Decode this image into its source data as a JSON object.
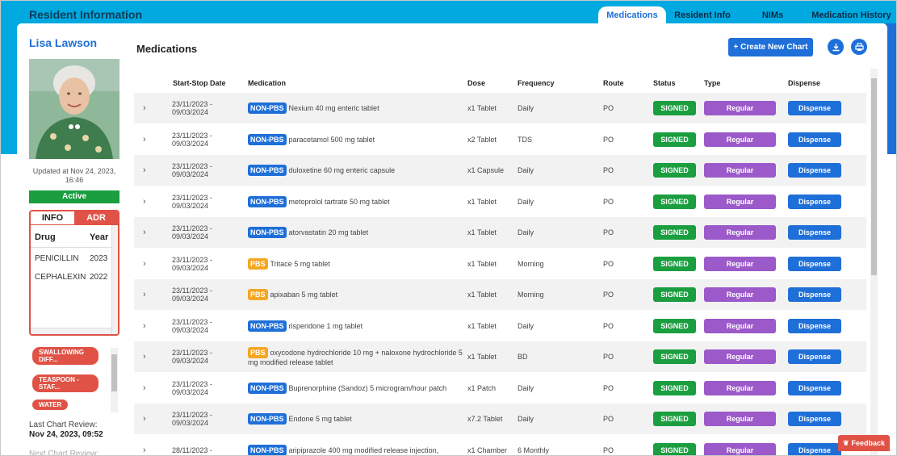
{
  "app": {
    "title": "Resident Information"
  },
  "tabs": [
    {
      "label": "Medications",
      "active": true
    },
    {
      "label": "Resident Info",
      "active": false
    },
    {
      "label": "NIMs",
      "active": false
    },
    {
      "label": "Medication History",
      "active": false
    }
  ],
  "resident": {
    "name": "Lisa Lawson",
    "updated": "Updated at Nov 24, 2023, 16:46",
    "status": "Active",
    "last_review_label": "Last Chart Review:",
    "last_review_value": "Nov 24, 2023, 09:52",
    "next_review_label": "Next Chart Review:"
  },
  "adr": {
    "tabs": [
      "INFO",
      "ADR"
    ],
    "headers": [
      "Drug",
      "Year"
    ],
    "rows": [
      {
        "drug": "PENICILLIN",
        "year": "2023"
      },
      {
        "drug": "CEPHALEXIN",
        "year": "2022"
      }
    ]
  },
  "tags": [
    "SWALLOWING DIFF...",
    "TEASPOON - STAF...",
    "WATER"
  ],
  "main": {
    "title": "Medications",
    "create_button": "+ Create New Chart",
    "download_icon": "download-icon",
    "print_icon": "print-icon",
    "columns": [
      "Start-Stop Date",
      "Medication",
      "Dose",
      "Frequency",
      "Route",
      "Status",
      "Type",
      "Dispense"
    ],
    "rows": [
      {
        "date1": "23/11/2023 -",
        "date2": "09/03/2024",
        "badge": "NON-PBS",
        "med": "Nexium 40 mg enteric tablet",
        "dose": "x1 Tablet",
        "freq": "Daily",
        "route": "PO",
        "status": "SIGNED",
        "type": "Regular",
        "dispense": "Dispense"
      },
      {
        "date1": "23/11/2023 -",
        "date2": "09/03/2024",
        "badge": "NON-PBS",
        "med": "paracetamol 500 mg tablet",
        "dose": "x2 Tablet",
        "freq": "TDS",
        "route": "PO",
        "status": "SIGNED",
        "type": "Regular",
        "dispense": "Dispense"
      },
      {
        "date1": "23/11/2023 -",
        "date2": "09/03/2024",
        "badge": "NON-PBS",
        "med": "duloxetine 60 mg enteric capsule",
        "dose": "x1 Capsule",
        "freq": "Daily",
        "route": "PO",
        "status": "SIGNED",
        "type": "Regular",
        "dispense": "Dispense"
      },
      {
        "date1": "23/11/2023 -",
        "date2": "09/03/2024",
        "badge": "NON-PBS",
        "med": "metoprolol tartrate 50 mg tablet",
        "dose": "x1 Tablet",
        "freq": "Daily",
        "route": "PO",
        "status": "SIGNED",
        "type": "Regular",
        "dispense": "Dispense"
      },
      {
        "date1": "23/11/2023 -",
        "date2": "09/03/2024",
        "badge": "NON-PBS",
        "med": "atorvastatin 20 mg tablet",
        "dose": "x1 Tablet",
        "freq": "Daily",
        "route": "PO",
        "status": "SIGNED",
        "type": "Regular",
        "dispense": "Dispense"
      },
      {
        "date1": "23/11/2023 -",
        "date2": "09/03/2024",
        "badge": "PBS",
        "med": "Tritace 5 mg tablet",
        "dose": "x1 Tablet",
        "freq": "Morning",
        "route": "PO",
        "status": "SIGNED",
        "type": "Regular",
        "dispense": "Dispense"
      },
      {
        "date1": "23/11/2023 -",
        "date2": "09/03/2024",
        "badge": "PBS",
        "med": "apixaban 5 mg tablet",
        "dose": "x1 Tablet",
        "freq": "Morning",
        "route": "PO",
        "status": "SIGNED",
        "type": "Regular",
        "dispense": "Dispense"
      },
      {
        "date1": "23/11/2023 -",
        "date2": "09/03/2024",
        "badge": "NON-PBS",
        "med": "risperidone 1 mg tablet",
        "dose": "x1 Tablet",
        "freq": "Daily",
        "route": "PO",
        "status": "SIGNED",
        "type": "Regular",
        "dispense": "Dispense"
      },
      {
        "date1": "23/11/2023 -",
        "date2": "09/03/2024",
        "badge": "PBS",
        "med": "oxycodone hydrochloride 10 mg + naloxone hydrochloride 5 mg modified release tablet",
        "dose": "x1 Tablet",
        "freq": "BD",
        "route": "PO",
        "status": "SIGNED",
        "type": "Regular",
        "dispense": "Dispense"
      },
      {
        "date1": "23/11/2023 -",
        "date2": "09/03/2024",
        "badge": "NON-PBS",
        "med": "Buprenorphine (Sandoz) 5 microgram/hour patch",
        "dose": "x1 Patch",
        "freq": "Daily",
        "route": "PO",
        "status": "SIGNED",
        "type": "Regular",
        "dispense": "Dispense"
      },
      {
        "date1": "23/11/2023 -",
        "date2": "09/03/2024",
        "badge": "NON-PBS",
        "med": "Endone 5 mg tablet",
        "dose": "x7.2 Tablet",
        "freq": "Daily",
        "route": "PO",
        "status": "SIGNED",
        "type": "Regular",
        "dispense": "Dispense"
      },
      {
        "date1": "28/11/2023 -",
        "date2": "",
        "badge": "NON-PBS",
        "med": "aripiprazole 400 mg modified release injection,",
        "dose": "x1 Chamber",
        "freq": "6 Monthly",
        "route": "PO",
        "status": "SIGNED",
        "type": "Regular",
        "dispense": "Dispense"
      }
    ]
  },
  "feedback": {
    "label": "Feedback"
  },
  "colors": {
    "topband": "#00a9e0",
    "primary": "#1f6fd8",
    "signed": "#1a9e3f",
    "regular": "#9b59c9",
    "non_pbs": "#1f6fd8",
    "pbs": "#f5a623",
    "alert": "#e05246"
  }
}
